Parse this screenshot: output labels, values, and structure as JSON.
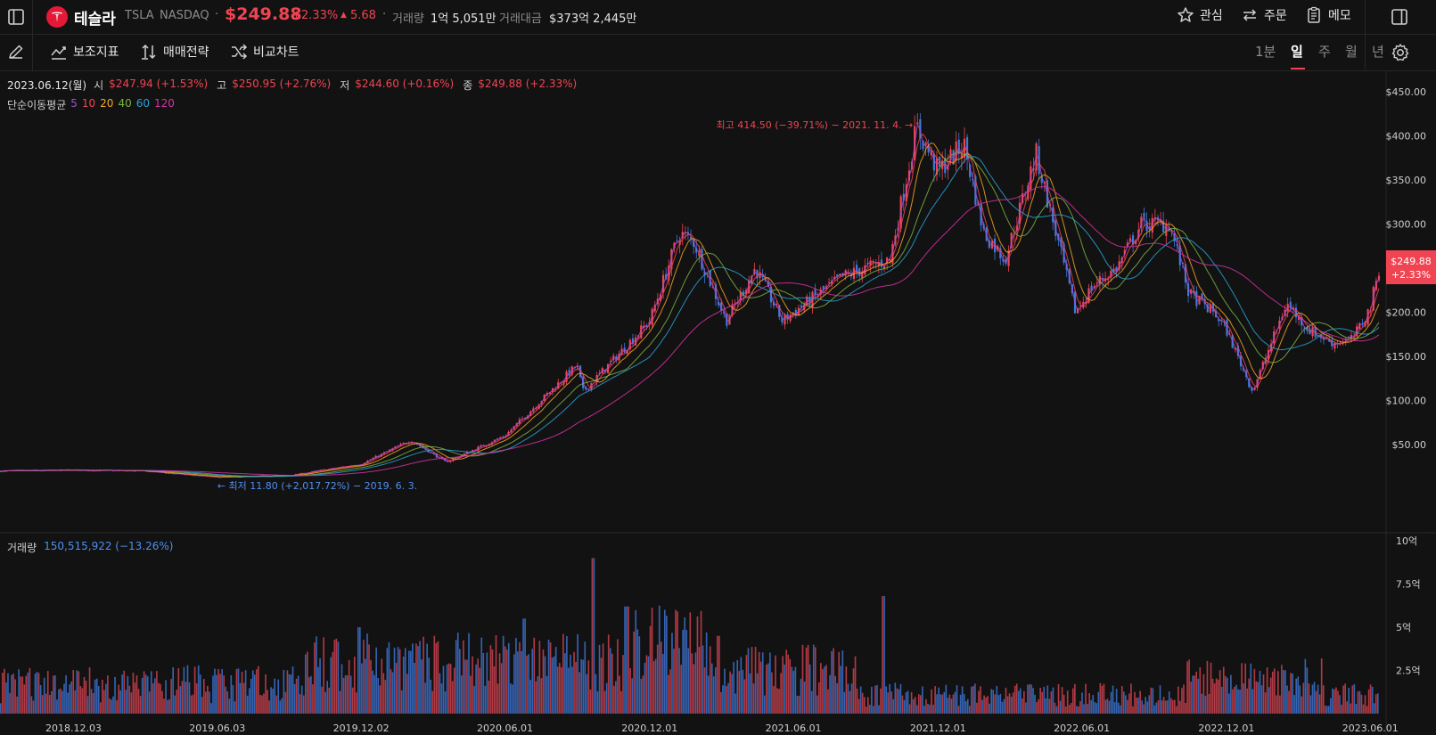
{
  "header": {
    "stock_name": "테슬라",
    "ticker": "TSLA",
    "exchange": "NASDAQ",
    "price": "$249.88",
    "change_pct": "+2.33%",
    "change_abs": "5.68",
    "volume_label": "거래량",
    "volume_value": "1억 5,051만",
    "amount_label": "거래대금",
    "amount_value": "$373억 2,445만",
    "actions": [
      {
        "label": "관심",
        "icon": "star-icon"
      },
      {
        "label": "주문",
        "icon": "swap-icon"
      },
      {
        "label": "메모",
        "icon": "memo-icon"
      }
    ]
  },
  "toolbar": {
    "indicators_label": "보조지표",
    "strategy_label": "매매전략",
    "compare_label": "비교차트",
    "timeframes": [
      "1분",
      "일",
      "주",
      "월",
      "년"
    ],
    "active_timeframe": "일"
  },
  "ohlc": {
    "date": "2023.06.12(월)",
    "open_label": "시",
    "open": "$247.94 (+1.53%)",
    "high_label": "고",
    "high": "$250.95 (+2.76%)",
    "low_label": "저",
    "low": "$244.60 (+0.16%)",
    "close_label": "종",
    "close": "$249.88 (+2.33%)"
  },
  "ma_legend": {
    "label": "단순이동평균",
    "periods": [
      {
        "p": "5",
        "color": "#a64dd6"
      },
      {
        "p": "10",
        "color": "#f04452"
      },
      {
        "p": "20",
        "color": "#f5a623"
      },
      {
        "p": "40",
        "color": "#7cb342"
      },
      {
        "p": "60",
        "color": "#29a3d6"
      },
      {
        "p": "120",
        "color": "#d633a6"
      }
    ]
  },
  "annotations": {
    "high": "최고 414.50 (−39.71%) − 2021. 11. 4.",
    "low": "최저 11.80 (+2,017.72%) − 2019. 6. 3."
  },
  "price_badge": {
    "price": "$249.88",
    "pct": "+2.33%"
  },
  "volume_panel": {
    "label": "거래량",
    "value": "150,515,922 (−13.26%)"
  },
  "colors": {
    "up": "#f04452",
    "down": "#3d7bd9",
    "background": "#121212",
    "grid": "#262626"
  },
  "chart_data": [
    {
      "type": "candlestick",
      "ylim": [
        0,
        460
      ],
      "y_ticks": [
        "$450.00",
        "$400.00",
        "$350.00",
        "$300.00",
        "$250.00",
        "$200.00",
        "$150.00",
        "$100.00",
        "$50.00"
      ],
      "y_tick_values": [
        450,
        400,
        350,
        300,
        250,
        200,
        150,
        100,
        50
      ],
      "x_ticks": [
        "2018.12.03",
        "2019.06.03",
        "2019.12.02",
        "2020.06.01",
        "2020.12.01",
        "2021.06.01",
        "2021.12.01",
        "2022.06.01",
        "2022.12.01",
        "2023.06.01"
      ],
      "x_tick_dates": [
        "2018-12-03",
        "2019-06-03",
        "2019-12-02",
        "2020-06-01",
        "2020-12-01",
        "2021-06-01",
        "2021-12-01",
        "2022-06-01",
        "2022-12-01",
        "2023-06-01"
      ],
      "x_range": [
        "2018-09-01",
        "2023-06-12"
      ],
      "close_series": {
        "dates": [
          "2018-09-01",
          "2018-12-03",
          "2019-03-01",
          "2019-06-03",
          "2019-09-03",
          "2019-12-02",
          "2020-02-03",
          "2020-03-18",
          "2020-06-01",
          "2020-08-31",
          "2020-09-08",
          "2020-10-15",
          "2020-12-01",
          "2021-01-08",
          "2021-01-26",
          "2021-03-08",
          "2021-04-14",
          "2021-05-18",
          "2021-06-01",
          "2021-08-02",
          "2021-10-01",
          "2021-11-04",
          "2021-12-01",
          "2022-01-03",
          "2022-01-28",
          "2022-02-24",
          "2022-04-04",
          "2022-05-24",
          "2022-06-15",
          "2022-07-15",
          "2022-08-15",
          "2022-09-20",
          "2022-10-15",
          "2022-11-15",
          "2022-12-01",
          "2023-01-03",
          "2023-02-15",
          "2023-03-15",
          "2023-04-15",
          "2023-05-10",
          "2023-06-01",
          "2023-06-12"
        ],
        "values": [
          20,
          21,
          20,
          13,
          15,
          28,
          55,
          30,
          60,
          140,
          110,
          145,
          190,
          290,
          280,
          190,
          250,
          190,
          200,
          240,
          260,
          410,
          360,
          390,
          290,
          260,
          380,
          200,
          230,
          250,
          300,
          300,
          220,
          200,
          180,
          110,
          210,
          180,
          165,
          170,
          205,
          249.88
        ]
      },
      "moving_average_periods": [
        5,
        10,
        20,
        40,
        60,
        120
      ]
    },
    {
      "type": "bar",
      "series": [
        {
          "name": "거래량"
        }
      ],
      "ylim": [
        0,
        1000000000
      ],
      "y_ticks": [
        "10억",
        "7.5억",
        "5억",
        "2.5억"
      ],
      "y_tick_values": [
        1000000000,
        750000000,
        500000000,
        250000000
      ],
      "last_value": 150515922
    }
  ]
}
